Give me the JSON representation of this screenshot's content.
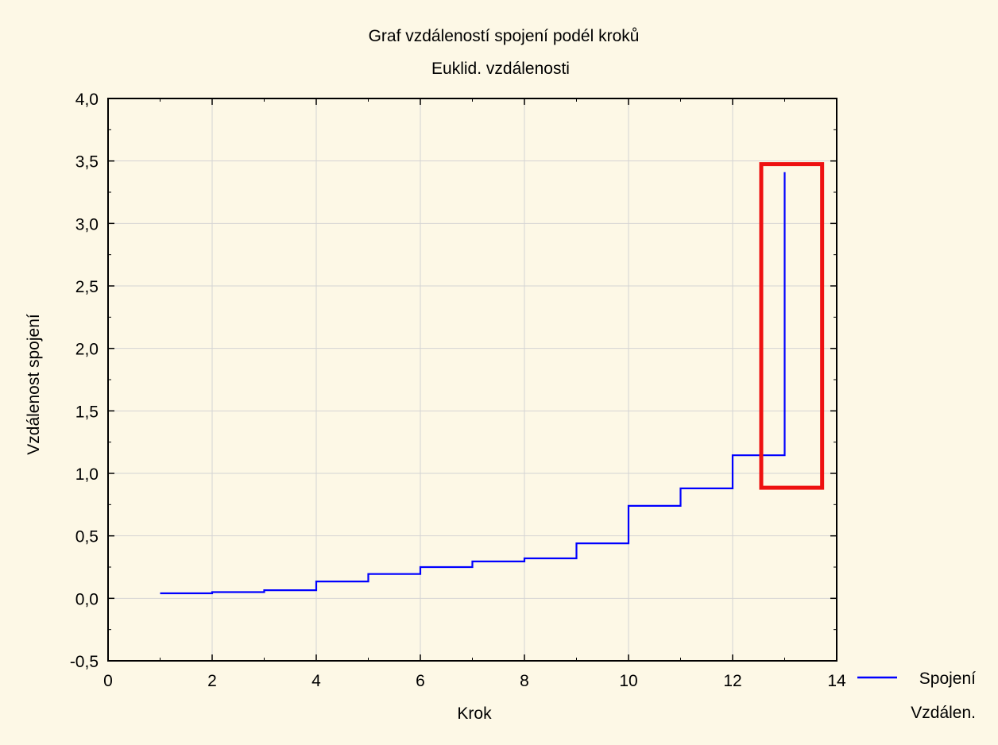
{
  "chart_data": {
    "type": "line",
    "title": "Graf vzdáleností spojení podél kroků",
    "subtitle": "Euklid. vzdálenosti",
    "xlabel": "Krok",
    "ylabel": "Vzdálenost spojení",
    "xlim": [
      0,
      14
    ],
    "ylim": [
      -0.5,
      4.0
    ],
    "x_ticks": [
      0,
      2,
      4,
      6,
      8,
      10,
      12,
      14
    ],
    "x_tick_labels": [
      "0",
      "2",
      "4",
      "6",
      "8",
      "10",
      "12",
      "14"
    ],
    "y_ticks": [
      -0.5,
      0.0,
      0.5,
      1.0,
      1.5,
      2.0,
      2.5,
      3.0,
      3.5,
      4.0
    ],
    "y_tick_labels": [
      "-0,5",
      "0,0",
      "0,5",
      "1,0",
      "1,5",
      "2,0",
      "2,5",
      "3,0",
      "3,5",
      "4,0"
    ],
    "grid": true,
    "step": "post",
    "legend_placement": "bottom-right",
    "series": [
      {
        "name": "Spojení",
        "legend_line2": "Vzdálen.",
        "color": "#0000ff",
        "x": [
          1,
          2,
          3,
          4,
          5,
          6,
          7,
          8,
          9,
          10,
          11,
          12,
          13
        ],
        "values": [
          0.04,
          0.05,
          0.065,
          0.135,
          0.195,
          0.25,
          0.295,
          0.32,
          0.44,
          0.74,
          0.88,
          1.145,
          3.41
        ]
      }
    ],
    "highlight_box": {
      "color": "#ee1111",
      "x_range": [
        12.55,
        13.72
      ],
      "y_range": [
        0.885,
        3.475
      ]
    }
  }
}
